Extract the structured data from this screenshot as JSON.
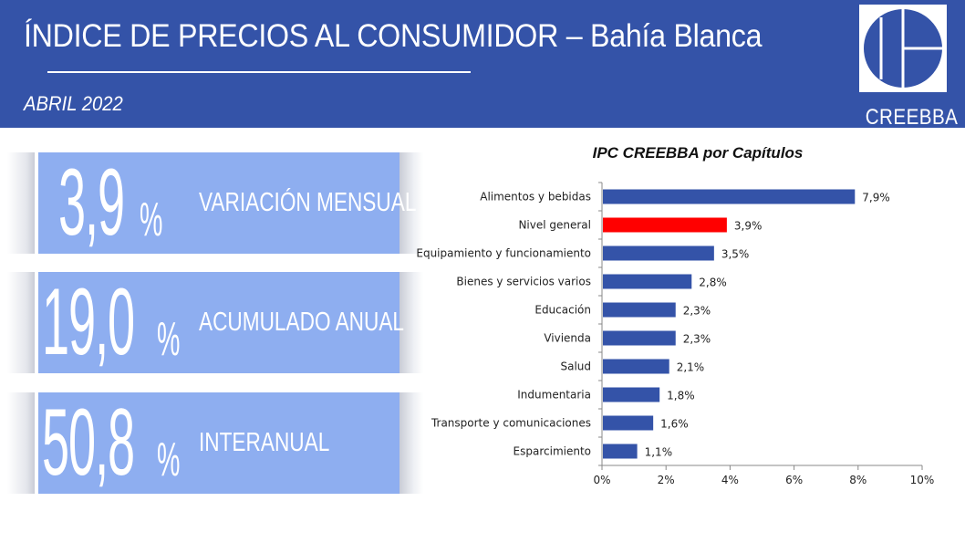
{
  "header": {
    "title": "ÍNDICE DE PRECIOS AL CONSUMIDOR – Bahía Blanca",
    "subtitle": "ABRIL 2022",
    "logo_text": "CREEBBA"
  },
  "stats": [
    {
      "value": "3,9",
      "unit": "%",
      "label": "VARIACIÓN MENSUAL"
    },
    {
      "value": "19,0",
      "unit": "%",
      "label": "ACUMULADO ANUAL"
    },
    {
      "value": "50,8",
      "unit": "%",
      "label": "INTERANUAL"
    }
  ],
  "colors": {
    "header_bg": "#3453a8",
    "stat_box": "#8eaef0",
    "bar": "#3453a8",
    "bar_highlight": "#ff0000"
  },
  "chart_data": {
    "type": "bar",
    "orientation": "horizontal",
    "title": "IPC CREEBBA por Capítulos",
    "categories": [
      "Alimentos y bebidas",
      "Nivel general",
      "Equipamiento y funcionamiento",
      "Bienes y servicios varios",
      "Educación",
      "Vivienda",
      "Salud",
      "Indumentaria",
      "Transporte y comunicaciones",
      "Esparcimiento"
    ],
    "values": [
      7.9,
      3.9,
      3.5,
      2.8,
      2.3,
      2.3,
      2.1,
      1.8,
      1.6,
      1.1
    ],
    "data_labels": [
      "7,9%",
      "3,9%",
      "3,5%",
      "2,8%",
      "2,3%",
      "2,3%",
      "2,1%",
      "1,8%",
      "1,6%",
      "1,1%"
    ],
    "highlight": "Nivel general",
    "xlim": [
      0,
      10
    ],
    "xticks": [
      0,
      2,
      4,
      6,
      8,
      10
    ],
    "xtick_labels": [
      "0%",
      "2%",
      "4%",
      "6%",
      "8%",
      "10%"
    ],
    "grid": false,
    "legend": "none"
  }
}
